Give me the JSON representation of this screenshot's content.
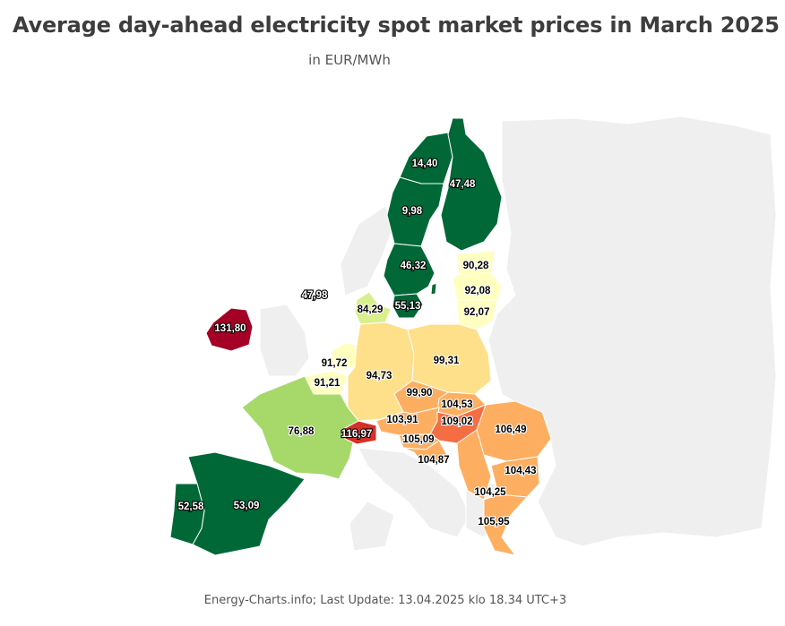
{
  "title": "Average day-ahead electricity spot market prices in March 2025",
  "subtitle": "in EUR/MWh",
  "footer": "Energy-Charts.info; Last Update: 13.04.2025 klo 18.34 UTC+3",
  "colors": {
    "dark_green": "#006837",
    "light_green": "#a6d96a",
    "pale_green": "#d9ef8b",
    "pale_yellow": "#ffffbf",
    "light_orange": "#fee08b",
    "orange": "#fdae61",
    "red_orange": "#f46d43",
    "red": "#d73027",
    "dark_red": "#a50026",
    "background_land": "#efefef"
  },
  "regions": [
    {
      "id": "se1",
      "label": "14,40",
      "color": "#006837"
    },
    {
      "id": "fi",
      "label": "47,48",
      "color": "#006837"
    },
    {
      "id": "se2",
      "label": "9,98",
      "color": "#006837"
    },
    {
      "id": "se3",
      "label": "46,32",
      "color": "#006837"
    },
    {
      "id": "ee",
      "label": "90,28",
      "color": "#ffffbf"
    },
    {
      "id": "no-label",
      "label": "47,98",
      "color": "#efefef"
    },
    {
      "id": "lv",
      "label": "92,08",
      "color": "#ffffbf"
    },
    {
      "id": "dk",
      "label": "84,29",
      "color": "#d9ef8b"
    },
    {
      "id": "se4",
      "label": "55,13",
      "color": "#006837"
    },
    {
      "id": "lt",
      "label": "92,07",
      "color": "#ffffbf"
    },
    {
      "id": "ie",
      "label": "131,80",
      "color": "#a50026"
    },
    {
      "id": "nl",
      "label": "91,72",
      "color": "#ffffbf"
    },
    {
      "id": "de",
      "label": "94,73",
      "color": "#fee08b"
    },
    {
      "id": "pl",
      "label": "99,31",
      "color": "#fee08b"
    },
    {
      "id": "be",
      "label": "91,21",
      "color": "#ffffbf"
    },
    {
      "id": "cz",
      "label": "99,90",
      "color": "#fdae61"
    },
    {
      "id": "sk",
      "label": "104,53",
      "color": "#fdae61"
    },
    {
      "id": "at",
      "label": "103,91",
      "color": "#fdae61"
    },
    {
      "id": "hu",
      "label": "109,02",
      "color": "#f46d43"
    },
    {
      "id": "ro",
      "label": "106,49",
      "color": "#fdae61"
    },
    {
      "id": "fr",
      "label": "76,88",
      "color": "#a6d96a"
    },
    {
      "id": "ch",
      "label": "116,97",
      "color": "#d73027"
    },
    {
      "id": "si",
      "label": "105,09",
      "color": "#fdae61"
    },
    {
      "id": "hr",
      "label": "104,87",
      "color": "#fdae61"
    },
    {
      "id": "bg",
      "label": "104,43",
      "color": "#fdae61"
    },
    {
      "id": "rs",
      "label": "104,25",
      "color": "#fdae61"
    },
    {
      "id": "pt",
      "label": "52,58",
      "color": "#006837"
    },
    {
      "id": "es",
      "label": "53,09",
      "color": "#006837"
    },
    {
      "id": "gr",
      "label": "105,95",
      "color": "#fdae61"
    }
  ]
}
